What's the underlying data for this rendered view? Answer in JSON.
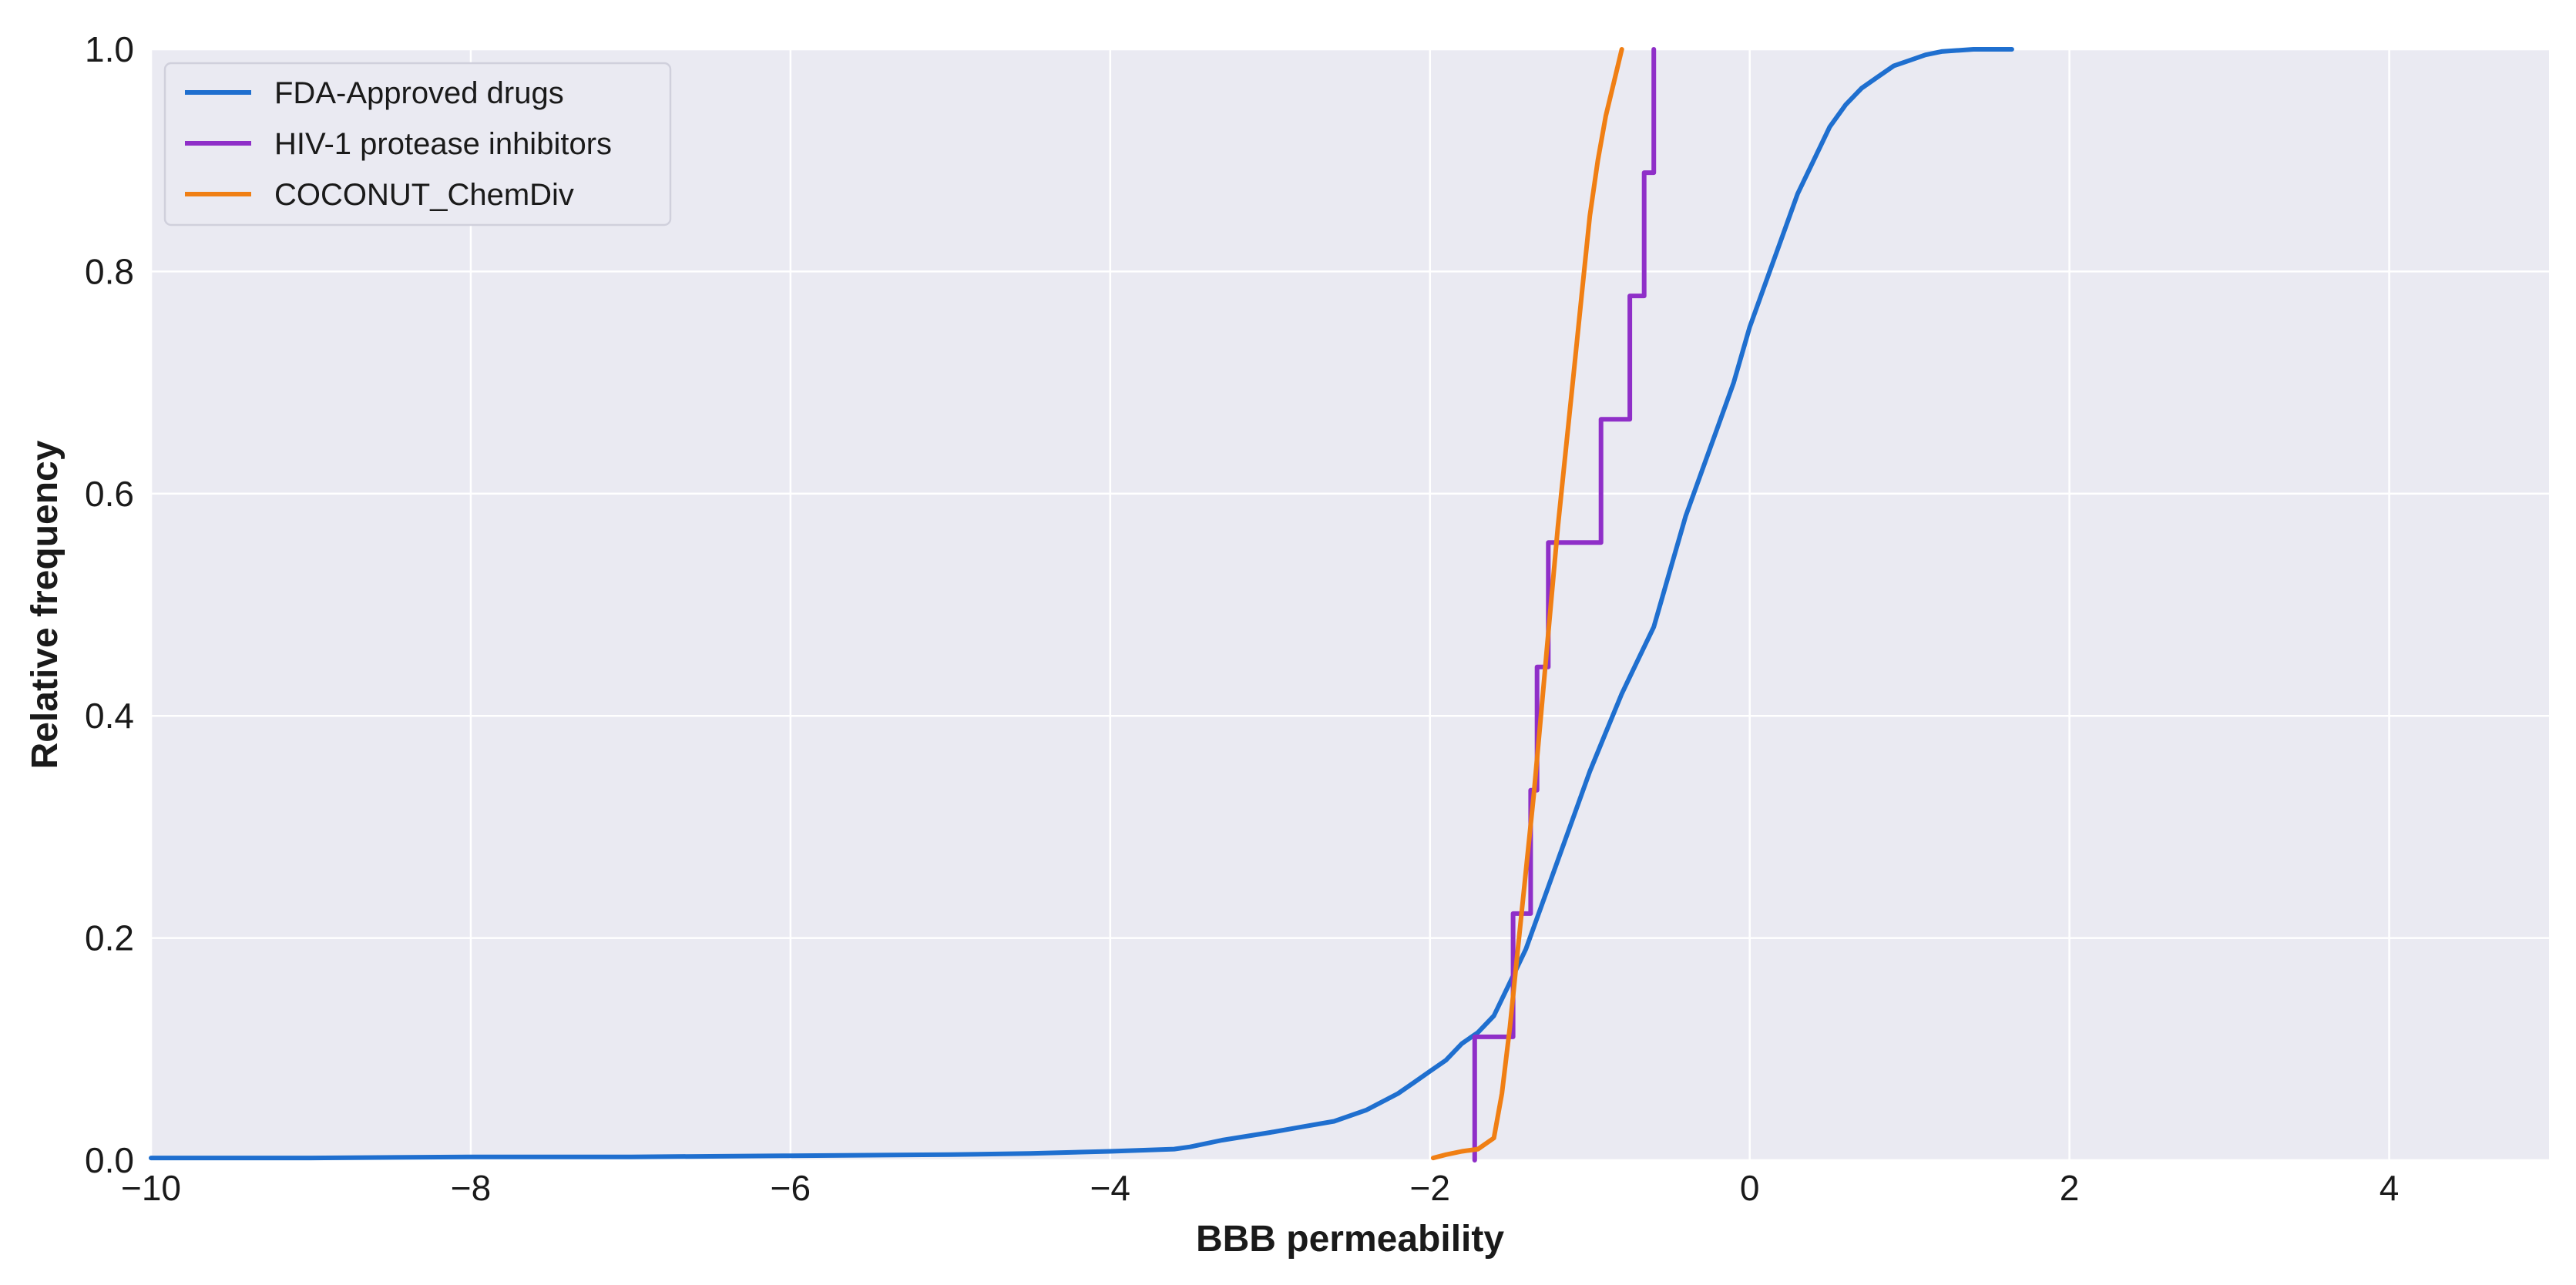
{
  "chart_data": {
    "type": "line",
    "xlabel": "BBB permeability",
    "ylabel": "Relative frequency",
    "xlim": [
      -10,
      5
    ],
    "ylim": [
      0,
      1
    ],
    "xticks": [
      -10,
      -8,
      -6,
      -4,
      -2,
      0,
      2,
      4
    ],
    "xtick_labels": [
      "−10",
      "−8",
      "−6",
      "−4",
      "−2",
      "0",
      "2",
      "4"
    ],
    "yticks": [
      0.0,
      0.2,
      0.4,
      0.6,
      0.8,
      1.0
    ],
    "ytick_labels": [
      "0.0",
      "0.2",
      "0.4",
      "0.6",
      "0.8",
      "1.0"
    ],
    "grid": true,
    "legend_position": "top-left",
    "background_color": "#eaeaf2",
    "series": [
      {
        "name": "FDA-Approved drugs",
        "color": "#1f6fcf",
        "step": false,
        "x": [
          -10,
          -9,
          -8,
          -7,
          -6,
          -5,
          -4.5,
          -4,
          -3.6,
          -3.5,
          -3.3,
          -3.0,
          -2.8,
          -2.6,
          -2.4,
          -2.2,
          -2.1,
          -2.0,
          -1.9,
          -1.8,
          -1.7,
          -1.6,
          -1.5,
          -1.4,
          -1.3,
          -1.2,
          -1.1,
          -1.0,
          -0.9,
          -0.8,
          -0.7,
          -0.6,
          -0.5,
          -0.4,
          -0.3,
          -0.2,
          -0.1,
          0.0,
          0.1,
          0.2,
          0.3,
          0.4,
          0.5,
          0.6,
          0.7,
          0.8,
          0.9,
          1.0,
          1.1,
          1.2,
          1.4,
          1.64
        ],
        "y": [
          0.002,
          0.002,
          0.003,
          0.003,
          0.004,
          0.005,
          0.006,
          0.008,
          0.01,
          0.012,
          0.018,
          0.025,
          0.03,
          0.035,
          0.045,
          0.06,
          0.07,
          0.08,
          0.09,
          0.105,
          0.115,
          0.13,
          0.16,
          0.19,
          0.23,
          0.27,
          0.31,
          0.35,
          0.385,
          0.42,
          0.45,
          0.48,
          0.53,
          0.58,
          0.62,
          0.66,
          0.7,
          0.75,
          0.79,
          0.83,
          0.87,
          0.9,
          0.93,
          0.95,
          0.965,
          0.975,
          0.985,
          0.99,
          0.995,
          0.998,
          1.0,
          1.0
        ]
      },
      {
        "name": "HIV-1 protease inhibitors",
        "color": "#8f2fc8",
        "step": true,
        "x": [
          -1.72,
          -1.72,
          -1.48,
          -1.48,
          -1.37,
          -1.37,
          -1.33,
          -1.33,
          -1.26,
          -1.26,
          -0.93,
          -0.93,
          -0.75,
          -0.75,
          -0.66,
          -0.66,
          -0.6,
          -0.6
        ],
        "y": [
          0.0,
          0.111,
          0.111,
          0.222,
          0.222,
          0.333,
          0.333,
          0.444,
          0.444,
          0.556,
          0.556,
          0.667,
          0.667,
          0.778,
          0.778,
          0.889,
          0.889,
          1.0
        ]
      },
      {
        "name": "COCONUT_ChemDiv",
        "color": "#f07f14",
        "step": false,
        "x": [
          -1.98,
          -1.9,
          -1.8,
          -1.7,
          -1.6,
          -1.55,
          -1.5,
          -1.45,
          -1.4,
          -1.35,
          -1.3,
          -1.25,
          -1.2,
          -1.15,
          -1.1,
          -1.05,
          -1.0,
          -0.95,
          -0.9,
          -0.85,
          -0.8
        ],
        "y": [
          0.002,
          0.005,
          0.008,
          0.01,
          0.02,
          0.06,
          0.12,
          0.19,
          0.26,
          0.33,
          0.41,
          0.49,
          0.57,
          0.64,
          0.71,
          0.78,
          0.85,
          0.9,
          0.94,
          0.97,
          1.0
        ]
      }
    ]
  }
}
